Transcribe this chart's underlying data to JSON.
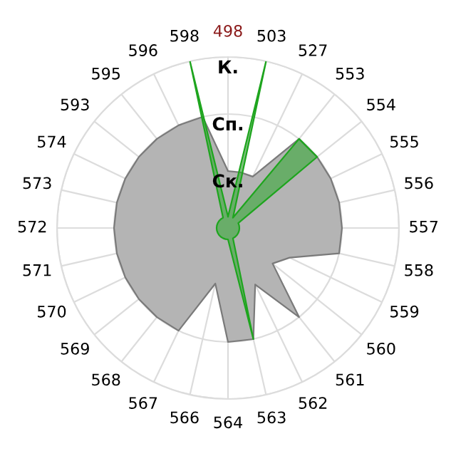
{
  "chart_data": {
    "type": "radar",
    "categories": [
      "498",
      "503",
      "527",
      "553",
      "554",
      "555",
      "556",
      "557",
      "558",
      "559",
      "560",
      "561",
      "562",
      "563",
      "564",
      "566",
      "567",
      "568",
      "569",
      "570",
      "571",
      "572",
      "573",
      "574",
      "593",
      "595",
      "596",
      "598"
    ],
    "series": [
      {
        "type": "area",
        "color": "#b4b4b4",
        "values": [
          1.0,
          1.0,
          1.0,
          2.0,
          2.0,
          2.0,
          2.0,
          2.0,
          2.0,
          1.2,
          1.0,
          2.0,
          1.1,
          2.0,
          2.0,
          1.0,
          2.0,
          2.0,
          2.0,
          2.0,
          2.0,
          2.0,
          2.0,
          2.0,
          2.0,
          2.0,
          2.0,
          2.0
        ]
      },
      {
        "type": "area",
        "color": "#1ea51e",
        "values": [
          0.2,
          3.0,
          0.2,
          2.0,
          2.0,
          0.2,
          0.2,
          0.2,
          0.2,
          0.2,
          0.2,
          0.2,
          0.2,
          2.0,
          0.2,
          0.2,
          0.2,
          0.2,
          0.2,
          0.2,
          0.2,
          0.2,
          0.2,
          0.2,
          0.2,
          0.2,
          0.2,
          3.0
        ]
      }
    ],
    "ylim": [
      0,
      3
    ],
    "yticks": [
      {
        "value": 1,
        "label": "Ск."
      },
      {
        "value": 2,
        "label": "Сп."
      },
      {
        "value": 3,
        "label": "К."
      }
    ],
    "grid": true
  }
}
